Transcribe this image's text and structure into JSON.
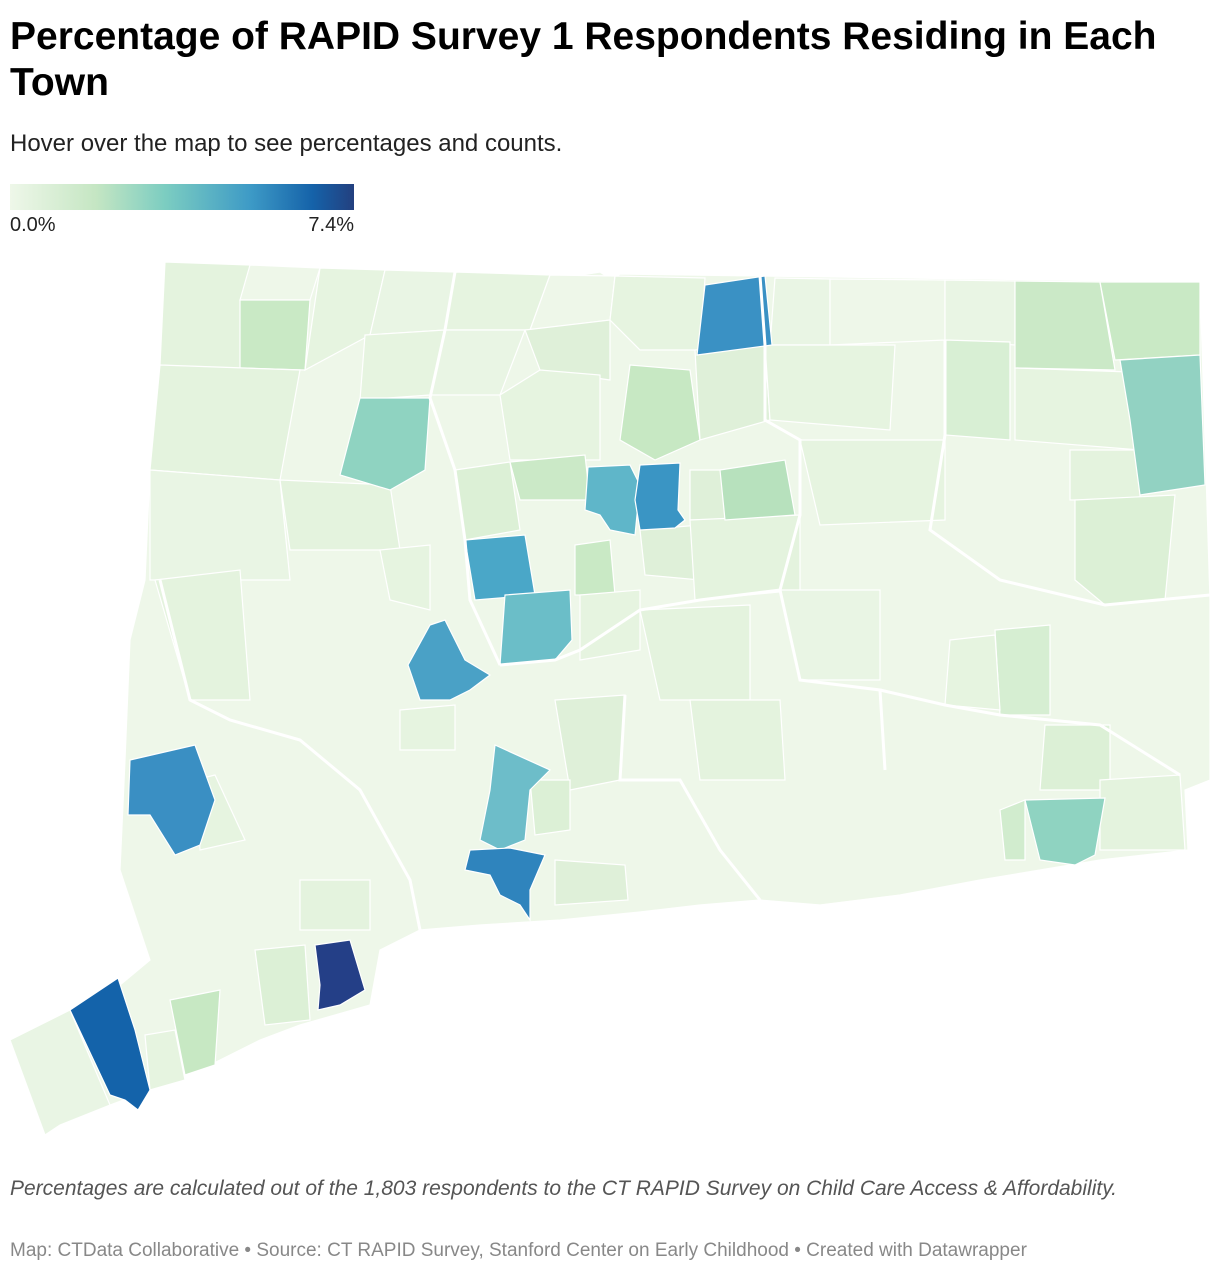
{
  "title": "Percentage of RAPID Survey 1 Respondents Residing in Each Town",
  "subtitle": "Hover over the map to see percentages and counts.",
  "legend": {
    "min_label": "0.0%",
    "max_label": "7.4%",
    "min_value": 0.0,
    "max_value": 7.4,
    "colors": [
      "#eef7e9",
      "#c5e6c3",
      "#7ccdc1",
      "#3d9ac6",
      "#1562a9",
      "#23407f"
    ]
  },
  "map": {
    "type": "choropleth",
    "region": "Connecticut towns",
    "base_color": "#eef7e9"
  },
  "note": "Percentages are calculated out of the 1,803 respondents to the CT RAPID Survey on Child Care Access & Affordability.",
  "source": "Map: CTData Collaborative • Source: CT RAPID Survey, Stanford Center on Early Childhood • Created with Datawrapper"
}
